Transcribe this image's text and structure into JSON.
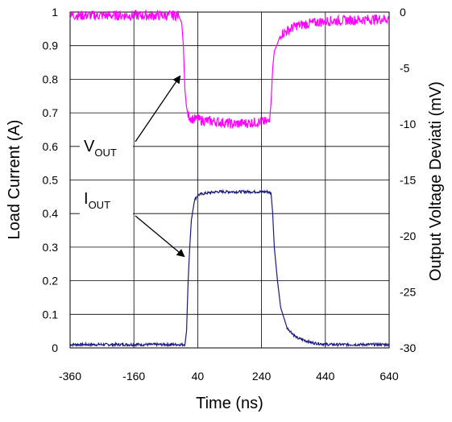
{
  "chart_data": {
    "type": "line",
    "xlabel": "Time (ns)",
    "ylabel_left": "Load Current (A)",
    "ylabel_right": "Output Voltage Deviati (mV)",
    "xlim": [
      -360,
      640
    ],
    "ylim_left": [
      0,
      1
    ],
    "ylim_right": [
      -30,
      0
    ],
    "x_ticks": [
      "-360",
      "-160",
      "40",
      "240",
      "440",
      "640"
    ],
    "y_left_ticks": [
      "0",
      "0.1",
      "0.2",
      "0.3",
      "0.4",
      "0.5",
      "0.6",
      "0.7",
      "0.8",
      "0.9",
      "1"
    ],
    "y_right_ticks": [
      "-30",
      "-25",
      "-20",
      "-15",
      "-10",
      "-5",
      "0"
    ],
    "grid": true,
    "series": [
      {
        "name": "IOUT",
        "axis": "left",
        "color": "#1a1a80",
        "x": [
          -360,
          -170,
          0,
          5,
          10,
          15,
          20,
          30,
          40,
          60,
          100,
          150,
          200,
          240,
          260,
          270,
          275,
          280,
          290,
          300,
          320,
          350,
          400,
          450,
          500,
          640
        ],
        "y": [
          0.01,
          0.01,
          0.01,
          0.05,
          0.2,
          0.3,
          0.38,
          0.44,
          0.455,
          0.46,
          0.465,
          0.465,
          0.465,
          0.465,
          0.465,
          0.46,
          0.4,
          0.3,
          0.2,
          0.12,
          0.06,
          0.03,
          0.015,
          0.01,
          0.01,
          0.01
        ]
      },
      {
        "name": "VOUT",
        "axis": "right",
        "color": "#ff00ff",
        "x": [
          -360,
          -160,
          -20,
          -10,
          -5,
          0,
          5,
          10,
          20,
          40,
          60,
          100,
          150,
          200,
          240,
          265,
          270,
          275,
          280,
          290,
          300,
          350,
          440,
          640
        ],
        "y": [
          -0.3,
          -0.3,
          -0.3,
          -1.0,
          -3.0,
          -7.0,
          -8.5,
          -9.2,
          -9.5,
          -9.6,
          -9.7,
          -9.8,
          -10.0,
          -9.9,
          -9.8,
          -9.8,
          -8.0,
          -5.0,
          -3.5,
          -2.8,
          -2.0,
          -1.2,
          -0.8,
          -0.6
        ]
      }
    ],
    "annotations": [
      {
        "base": "V",
        "sub": "OUT"
      },
      {
        "base": "I",
        "sub": "OUT"
      }
    ]
  }
}
